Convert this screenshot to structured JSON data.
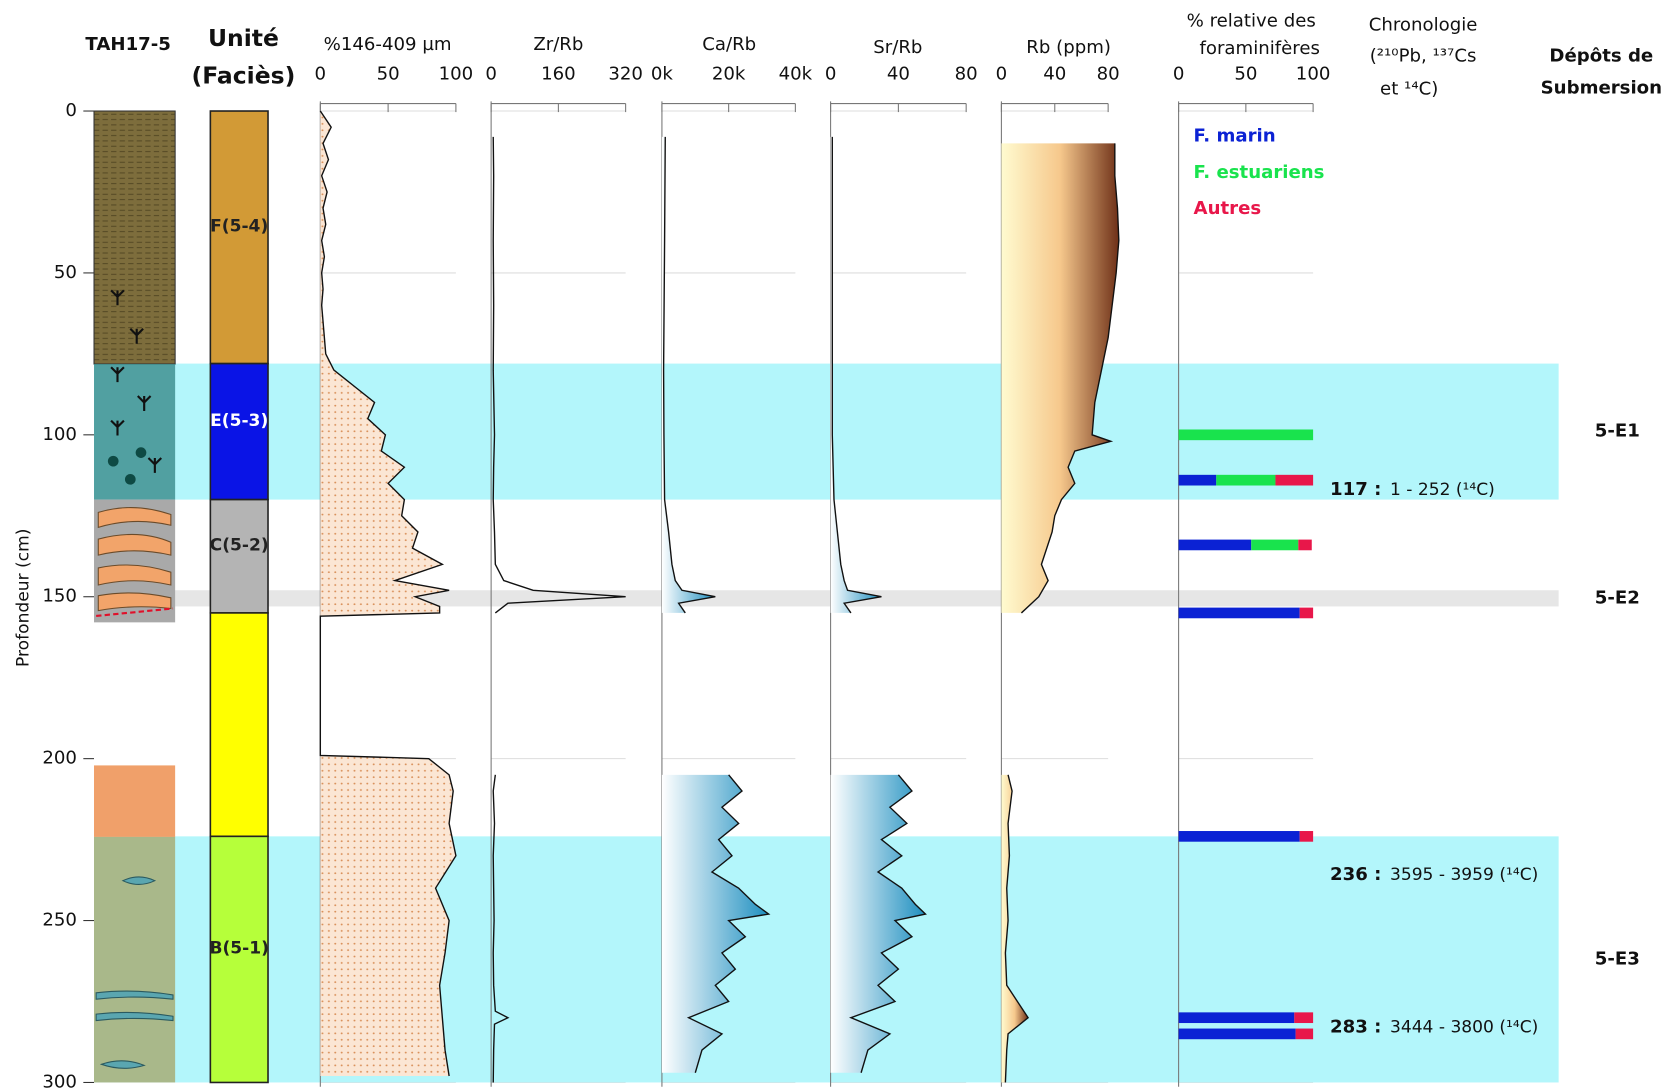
{
  "chart_data": [
    {
      "type": "lithology",
      "title": "TAH17-5",
      "ylabel": "Profondeur (cm)",
      "ylim": [
        0,
        300
      ],
      "yticks": [
        0,
        50,
        100,
        150,
        200,
        250,
        300
      ]
    },
    {
      "type": "units",
      "title": [
        "Unité",
        "(Faciès)"
      ],
      "units": [
        {
          "label": "F(5-4)",
          "top": 0,
          "bottom": 78,
          "color": "#d29a36"
        },
        {
          "label": "E(5-3)",
          "top": 78,
          "bottom": 120,
          "color": "#0a14e6"
        },
        {
          "label": "C(5-2)",
          "top": 120,
          "bottom": 155,
          "color": "#b4b4b4"
        },
        {
          "label": null,
          "top": 155,
          "bottom": 224,
          "color": "#ffff00"
        },
        {
          "label": "B(5-1)",
          "top": 224,
          "bottom": 300,
          "color": "#b6ff3a"
        }
      ]
    },
    {
      "type": "area",
      "title": "%146-409 µm",
      "fill": "dots",
      "xlim": [
        0,
        100
      ],
      "xticks": [
        0,
        50,
        100
      ],
      "y": [
        0,
        5,
        10,
        15,
        20,
        25,
        30,
        35,
        40,
        45,
        50,
        55,
        60,
        65,
        70,
        75,
        80,
        85,
        90,
        95,
        100,
        105,
        110,
        115,
        120,
        125,
        130,
        135,
        140,
        145,
        148,
        150,
        153,
        155,
        156,
        199,
        200,
        205,
        210,
        220,
        230,
        240,
        250,
        260,
        270,
        280,
        290,
        298
      ],
      "values": [
        0,
        8,
        2,
        6,
        1,
        5,
        2,
        4,
        1,
        3,
        1,
        2,
        1,
        2,
        3,
        4,
        10,
        25,
        40,
        35,
        48,
        45,
        62,
        50,
        62,
        60,
        72,
        68,
        90,
        55,
        95,
        70,
        88,
        88,
        0,
        0,
        80,
        95,
        98,
        95,
        100,
        85,
        95,
        92,
        88,
        90,
        92,
        95
      ]
    },
    {
      "type": "area",
      "title": "Zr/Rb",
      "fill": "none",
      "xlim": [
        0,
        320
      ],
      "xticks": [
        0,
        160,
        320
      ],
      "y": [
        8,
        20,
        40,
        60,
        80,
        100,
        110,
        120,
        130,
        140,
        145,
        148,
        150,
        152,
        155,
        180,
        205,
        210,
        220,
        230,
        240,
        250,
        260,
        270,
        278,
        280,
        282,
        290,
        300
      ],
      "values": [
        5,
        6,
        5,
        6,
        5,
        8,
        6,
        5,
        8,
        10,
        30,
        100,
        320,
        40,
        10,
        null,
        10,
        5,
        8,
        5,
        6,
        7,
        5,
        6,
        10,
        40,
        8,
        6,
        5
      ]
    },
    {
      "type": "area",
      "title": "Ca/Rb",
      "fill": "blue",
      "xlim": [
        0,
        40000
      ],
      "xticks": [
        {
          "value": 0,
          "label": "0k"
        },
        {
          "value": 20000,
          "label": "20k"
        },
        {
          "value": 40000,
          "label": "40k"
        }
      ],
      "y": [
        8,
        40,
        80,
        100,
        120,
        130,
        140,
        145,
        148,
        150,
        152,
        155,
        180,
        205,
        210,
        215,
        220,
        225,
        230,
        235,
        240,
        245,
        248,
        250,
        255,
        260,
        265,
        270,
        275,
        280,
        285,
        290,
        297
      ],
      "values": [
        1000,
        800,
        500,
        600,
        800,
        2000,
        3000,
        4000,
        6000,
        16000,
        5000,
        7000,
        null,
        20000,
        24000,
        18000,
        23000,
        17000,
        21000,
        15000,
        23000,
        28000,
        32000,
        20000,
        25000,
        18000,
        22000,
        16000,
        20000,
        8000,
        18000,
        12000,
        10000
      ]
    },
    {
      "type": "area",
      "title": "Sr/Rb",
      "fill": "blue",
      "xlim": [
        0,
        80
      ],
      "xticks": [
        0,
        40,
        80
      ],
      "y": [
        8,
        40,
        80,
        100,
        120,
        130,
        140,
        145,
        148,
        150,
        152,
        155,
        180,
        205,
        210,
        215,
        220,
        225,
        230,
        235,
        240,
        245,
        248,
        250,
        255,
        260,
        265,
        270,
        275,
        280,
        285,
        290,
        297
      ],
      "values": [
        1,
        1,
        1,
        1,
        2,
        4,
        6,
        8,
        10,
        30,
        8,
        12,
        null,
        40,
        48,
        35,
        45,
        30,
        42,
        28,
        42,
        50,
        56,
        38,
        48,
        30,
        40,
        28,
        38,
        12,
        35,
        22,
        18
      ]
    },
    {
      "type": "area",
      "title": "Rb (ppm)",
      "fill": "brown",
      "xlim": [
        0,
        80
      ],
      "xticks": [
        0,
        40,
        80
      ],
      "y": [
        10,
        20,
        30,
        40,
        50,
        60,
        70,
        80,
        90,
        100,
        102,
        105,
        110,
        115,
        120,
        125,
        130,
        140,
        145,
        150,
        155,
        180,
        205,
        210,
        220,
        230,
        240,
        250,
        260,
        270,
        280,
        285,
        290,
        300
      ],
      "values": [
        85,
        85,
        87,
        88,
        86,
        83,
        80,
        75,
        70,
        68,
        82,
        55,
        50,
        55,
        45,
        40,
        38,
        30,
        35,
        28,
        15,
        null,
        5,
        8,
        5,
        6,
        4,
        5,
        3,
        4,
        20,
        5,
        4,
        3
      ]
    },
    {
      "type": "bar",
      "title": [
        "% relative des",
        "foraminifères"
      ],
      "xlim": [
        0,
        100
      ],
      "xticks": [
        0,
        50,
        100
      ],
      "y": [
        100,
        114,
        134,
        155,
        224,
        280,
        285
      ],
      "series": [
        {
          "name": "F. marin",
          "color": "#0b22d4",
          "values": [
            0,
            28,
            54,
            90,
            90,
            86,
            87
          ]
        },
        {
          "name": "F. estuariens",
          "color": "#19e34d",
          "values": [
            100,
            44,
            35,
            0,
            0,
            0,
            0
          ]
        },
        {
          "name": "Autres",
          "color": "#e8174a",
          "values": [
            0,
            28,
            10,
            10,
            10,
            14,
            13
          ]
        }
      ]
    },
    {
      "type": "annotations",
      "title": [
        "Chronologie",
        "(²¹⁰Pb, ¹³⁷Cs",
        "et ¹⁴C)"
      ],
      "dates": [
        {
          "depth": 117,
          "label": "117 :",
          "range": "1 - 252 (¹⁴C)"
        },
        {
          "depth": 236,
          "label": "236 :",
          "range": "3595 - 3959  (¹⁴C)"
        },
        {
          "depth": 283,
          "label": "283 :",
          "range": "3444 - 3800 (¹⁴C)"
        }
      ]
    },
    {
      "type": "bands",
      "title": [
        "Dépôts de",
        "Submersion"
      ],
      "bands": [
        {
          "label": "5-E1",
          "top": 78,
          "bottom": 120,
          "color": "#b3f6fb"
        },
        {
          "label": "5-E2",
          "top": 148,
          "bottom": 153,
          "color": "#e6e6e6"
        },
        {
          "label": "5-E3",
          "top": 224,
          "bottom": 300,
          "color": "#b3f6fb"
        }
      ]
    }
  ]
}
